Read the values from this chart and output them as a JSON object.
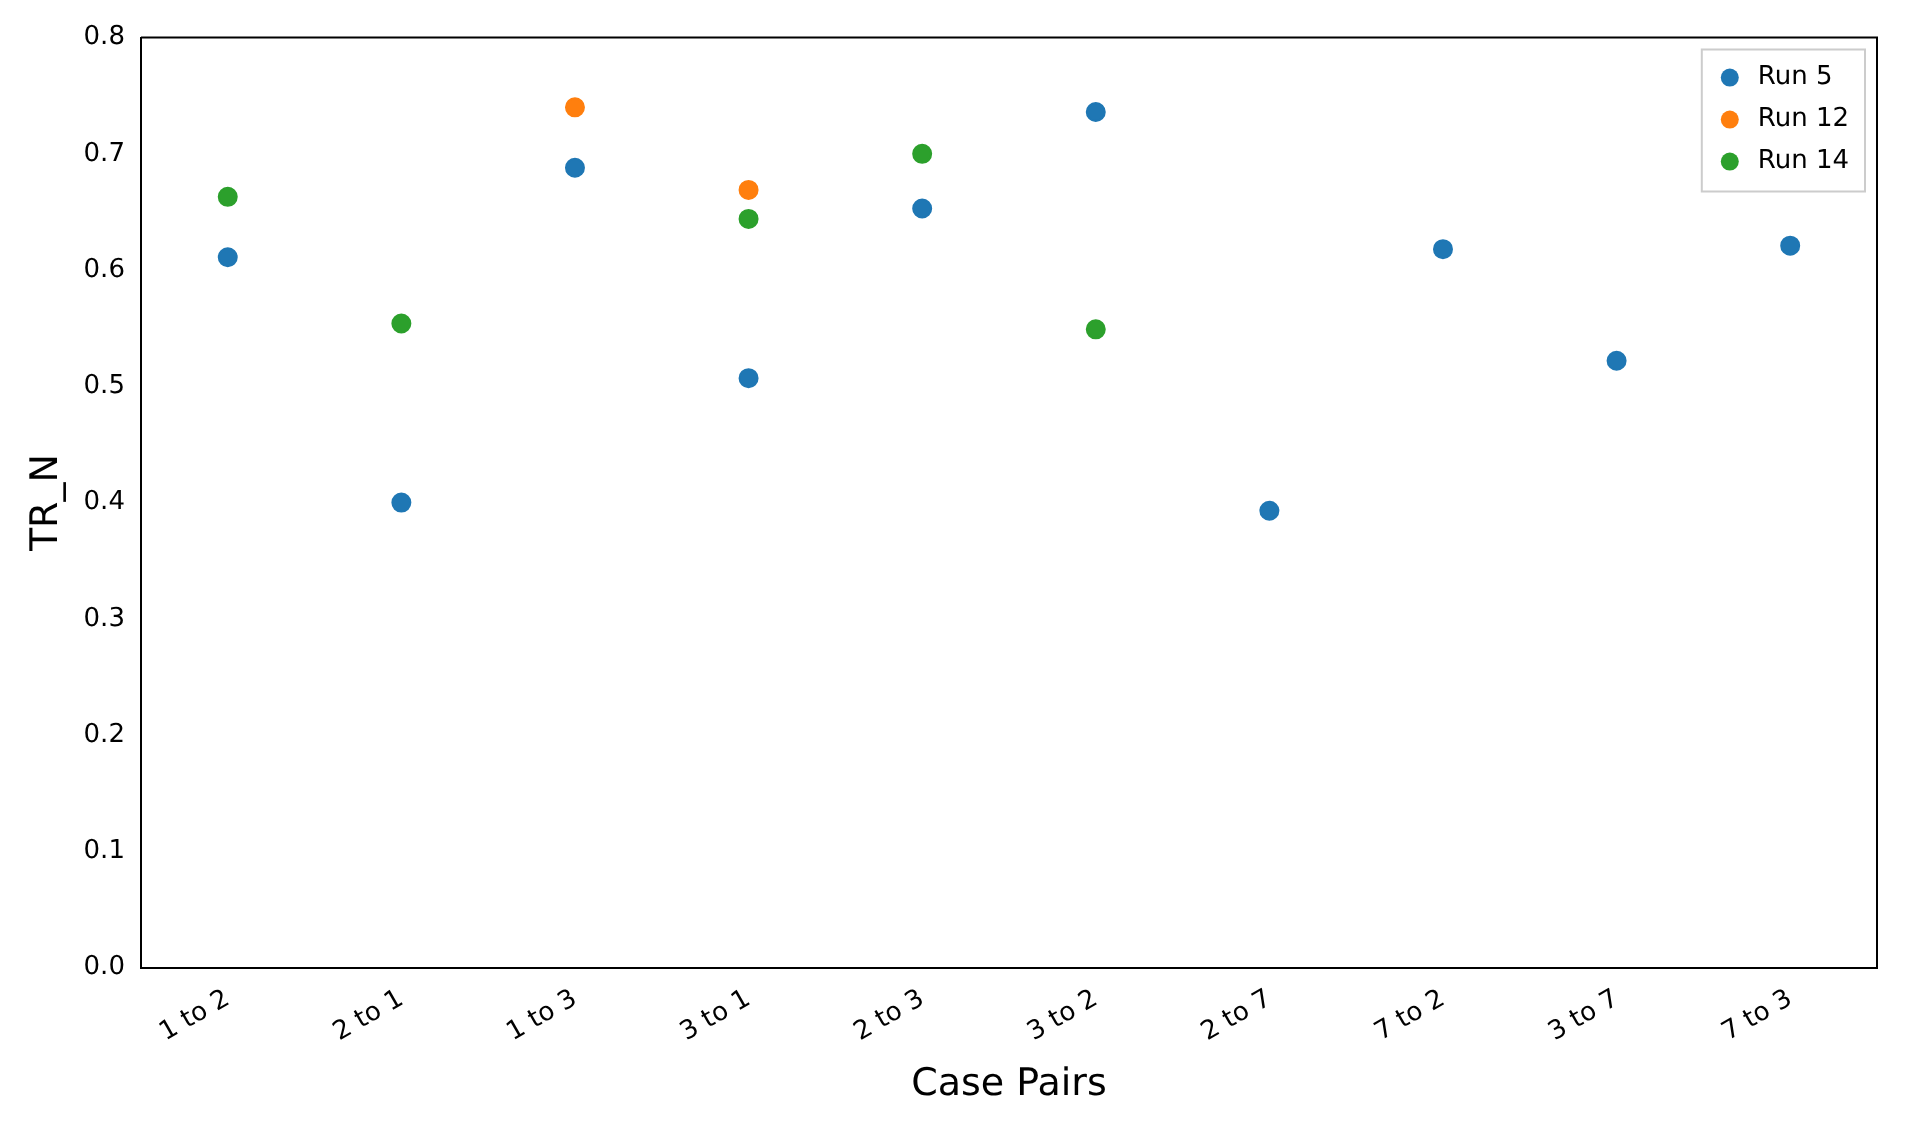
{
  "chart_data": {
    "type": "scatter",
    "xlabel": "Case Pairs",
    "ylabel": "TR_N",
    "categories": [
      "1 to 2",
      "2 to 1",
      "1 to 3",
      "3 to 1",
      "2 to 3",
      "3 to 2",
      "2 to 7",
      "7 to 2",
      "3 to 7",
      "7 to 3"
    ],
    "series": [
      {
        "name": "Run 5",
        "color": "#1f77b4",
        "values": [
          0.611,
          0.4,
          0.688,
          0.507,
          0.653,
          0.736,
          0.393,
          0.618,
          0.522,
          0.621
        ]
      },
      {
        "name": "Run 12",
        "color": "#ff7f0e",
        "values": [
          null,
          null,
          0.74,
          0.669,
          null,
          null,
          null,
          null,
          null,
          null
        ]
      },
      {
        "name": "Run 14",
        "color": "#2ca02c",
        "values": [
          0.663,
          0.554,
          null,
          0.644,
          0.7,
          0.549,
          null,
          null,
          null,
          null
        ]
      }
    ],
    "ylim": [
      0,
      0.8
    ],
    "yticks": [
      {
        "value": 0,
        "label": "0.0"
      },
      {
        "value": 0.1,
        "label": "0.1"
      },
      {
        "value": 0.2,
        "label": "0.2"
      },
      {
        "value": 0.3,
        "label": "0.3"
      },
      {
        "value": 0.4,
        "label": "0.4"
      },
      {
        "value": 0.5,
        "label": "0.5"
      },
      {
        "value": 0.6,
        "label": "0.6"
      },
      {
        "value": 0.7,
        "label": "0.7"
      },
      {
        "value": 0.8,
        "label": "0.8"
      }
    ],
    "grid": false,
    "legend": "top right",
    "marker": "circle"
  }
}
